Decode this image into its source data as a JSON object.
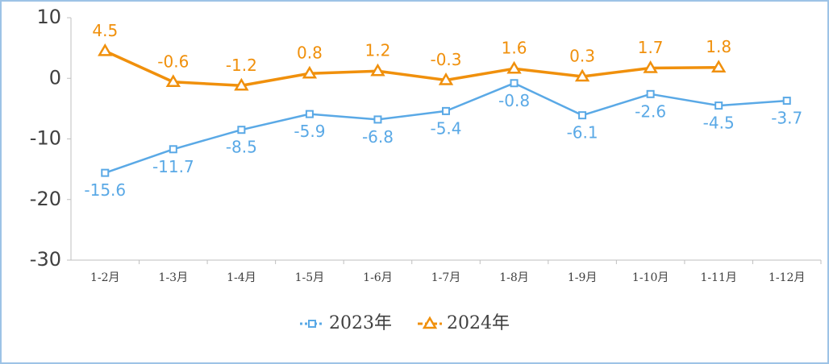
{
  "chart_data": {
    "type": "line",
    "categories": [
      "1-2月",
      "1-3月",
      "1-4月",
      "1-5月",
      "1-6月",
      "1-7月",
      "1-8月",
      "1-9月",
      "1-10月",
      "1-11月",
      "1-12月"
    ],
    "series": [
      {
        "name": "2023年",
        "color": "#5aa9e6",
        "marker": "square",
        "values": [
          -15.6,
          -11.7,
          -8.5,
          -5.9,
          -6.8,
          -5.4,
          -0.8,
          -6.1,
          -2.6,
          -4.5,
          -3.7
        ]
      },
      {
        "name": "2024年",
        "color": "#f0900c",
        "marker": "triangle",
        "values": [
          4.5,
          -0.6,
          -1.2,
          0.8,
          1.2,
          -0.3,
          1.6,
          0.3,
          1.7,
          1.8,
          null
        ]
      }
    ],
    "ylim": [
      -30,
      10
    ],
    "yticks": [
      -30,
      -20,
      -10,
      0,
      10
    ],
    "grid": false,
    "legend": "bottom"
  }
}
